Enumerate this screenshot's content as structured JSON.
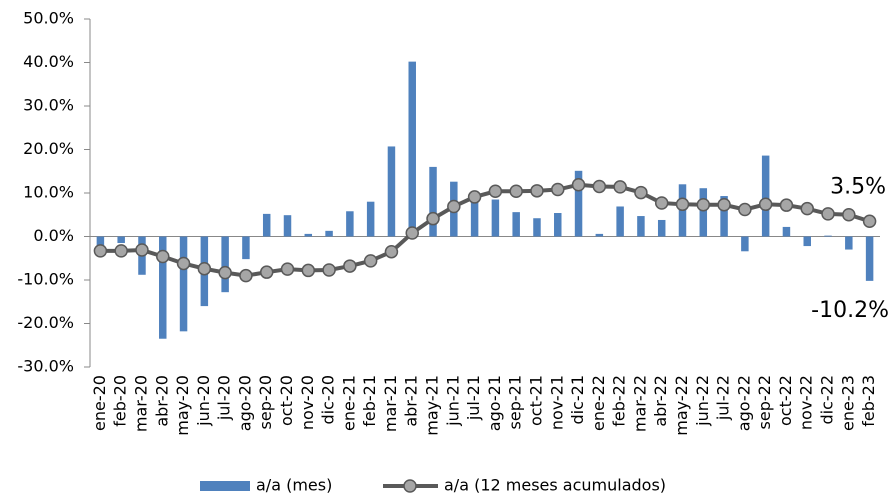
{
  "chart_data": {
    "type": "bar_line",
    "categories": [
      "ene-20",
      "feb-20",
      "mar-20",
      "abr-20",
      "may-20",
      "jun-20",
      "jul-20",
      "ago-20",
      "sep-20",
      "oct-20",
      "nov-20",
      "dic-20",
      "ene-21",
      "feb-21",
      "mar-21",
      "abr-21",
      "may-21",
      "jun-21",
      "jul-21",
      "ago-21",
      "sep-21",
      "oct-21",
      "nov-21",
      "dic-21",
      "ene-22",
      "feb-22",
      "mar-22",
      "abr-22",
      "may-22",
      "jun-22",
      "jul-22",
      "ago-22",
      "sep-22",
      "oct-22",
      "nov-22",
      "dic-22",
      "ene-23",
      "feb-23"
    ],
    "series": [
      {
        "name": "a/a (mes)",
        "kind": "bar",
        "color": "#4f81bd",
        "values": [
          -2.5,
          -1.5,
          -8.8,
          -23.5,
          -21.8,
          -16,
          -12.8,
          -5.2,
          5.2,
          4.9,
          0.6,
          1.3,
          5.8,
          8,
          20.7,
          40.2,
          16,
          12.6,
          8.5,
          8.5,
          5.6,
          4.2,
          5.4,
          15.1,
          0.6,
          6.9,
          4.7,
          3.8,
          12,
          11.1,
          9.3,
          -3.4,
          18.6,
          2.2,
          -2.2,
          0.2,
          -3,
          -10.2
        ]
      },
      {
        "name": "a/a (12 meses acumulados)",
        "kind": "line",
        "color": "#595959",
        "values": [
          -3.3,
          -3.3,
          -3.1,
          -4.6,
          -6.2,
          -7.4,
          -8.3,
          -9.0,
          -8.2,
          -7.5,
          -7.8,
          -7.7,
          -6.8,
          -5.6,
          -3.5,
          0.8,
          4.1,
          6.9,
          9.1,
          10.4,
          10.4,
          10.5,
          10.8,
          11.9,
          11.5,
          11.4,
          10.1,
          7.7,
          7.4,
          7.3,
          7.3,
          6.2,
          7.4,
          7.2,
          6.4,
          5.2,
          5.0,
          3.5
        ]
      }
    ],
    "ylim": [
      -30,
      50
    ],
    "yticks": [
      {
        "value": -30,
        "label": "-30.0%"
      },
      {
        "value": -20,
        "label": "-20.0%"
      },
      {
        "value": -10,
        "label": "-10.0%"
      },
      {
        "value": 0,
        "label": "0.0%"
      },
      {
        "value": 10,
        "label": "10.0%"
      },
      {
        "value": 20,
        "label": "20.0%"
      },
      {
        "value": 30,
        "label": "30.0%"
      },
      {
        "value": 40,
        "label": "40.0%"
      },
      {
        "value": 50,
        "label": "50.0%"
      }
    ],
    "annotations": [
      {
        "text": "3.5%",
        "color": "#ff0000"
      },
      {
        "text": "-10.2%",
        "color": "#000000"
      }
    ]
  }
}
